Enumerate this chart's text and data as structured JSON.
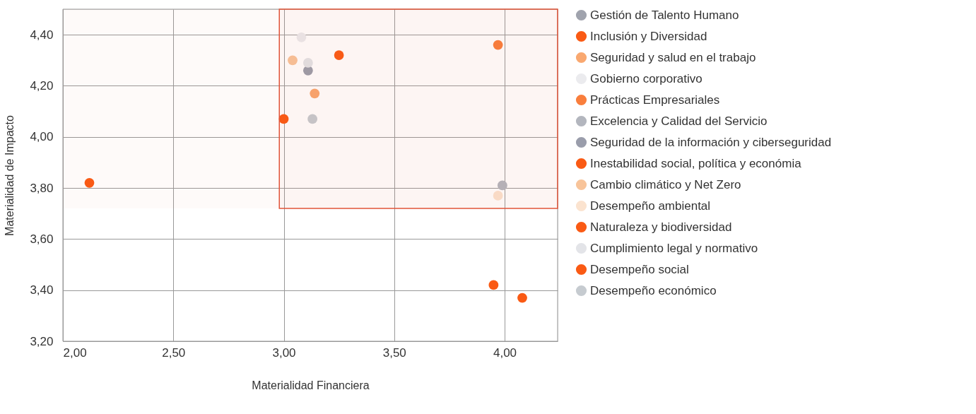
{
  "chart_data": {
    "type": "scatter",
    "xlabel": "Materialidad Financiera",
    "ylabel": "Materialidad de Impacto",
    "xlim": [
      2.0,
      4.24
    ],
    "ylim": [
      3.2,
      4.5
    ],
    "xticks": [
      {
        "value": 2.0,
        "label": "2,00"
      },
      {
        "value": 2.5,
        "label": "2,50"
      },
      {
        "value": 3.0,
        "label": "3,00"
      },
      {
        "value": 3.5,
        "label": "3,50"
      },
      {
        "value": 4.0,
        "label": "4,00"
      }
    ],
    "yticks": [
      {
        "value": 3.2,
        "label": "3,20"
      },
      {
        "value": 3.4,
        "label": "3,40"
      },
      {
        "value": 3.6,
        "label": "3,60"
      },
      {
        "value": 3.8,
        "label": "3,80"
      },
      {
        "value": 4.0,
        "label": "4,00"
      },
      {
        "value": 4.2,
        "label": "4,20"
      },
      {
        "value": 4.4,
        "label": "4,40"
      }
    ],
    "grid": true,
    "legend": "right",
    "marker": "circle",
    "bands": [
      {
        "axis": "x",
        "from": 2.98,
        "to": 4.24,
        "color": "#e2553a"
      },
      {
        "axis": "y",
        "from": 3.72,
        "to": 4.5,
        "color": "#e2553a"
      }
    ],
    "series": [
      {
        "name": "Gestión de Talento Humano",
        "color": "#a0a3ad",
        "x": [
          null
        ],
        "values": [
          null
        ]
      },
      {
        "name": "Inclusión y Diversidad",
        "color": "#fa5a14",
        "x": [
          3.0,
          3.25
        ],
        "values": [
          4.07,
          4.32
        ]
      },
      {
        "name": "Seguridad y salud en el trabajo",
        "color": "#f9a870",
        "x": [
          3.14
        ],
        "values": [
          4.17
        ]
      },
      {
        "name": "Gobierno corporativo",
        "color": "#ebebee",
        "x": [
          3.08
        ],
        "values": [
          4.39
        ]
      },
      {
        "name": "Prácticas Empresariales",
        "color": "#f97e3c",
        "x": [
          3.97
        ],
        "values": [
          4.36
        ]
      },
      {
        "name": "Excelencia y Calidad del Servicio",
        "color": "#b3b6be",
        "x": [
          3.99
        ],
        "values": [
          3.81
        ]
      },
      {
        "name": "Seguridad de la información y ciberseguridad",
        "color": "#9a9dab",
        "x": [
          3.11
        ],
        "values": [
          4.26
        ]
      },
      {
        "name": "Inestabilidad social, política y económia",
        "color": "#fa5a14",
        "x": [
          2.12
        ],
        "values": [
          3.82
        ]
      },
      {
        "name": "Cambio climático y Net Zero",
        "color": "#f8c49a",
        "x": [
          3.04
        ],
        "values": [
          4.3
        ]
      },
      {
        "name": "Desempeño ambiental",
        "color": "#fbe3cf",
        "x": [
          3.97
        ],
        "values": [
          3.77
        ]
      },
      {
        "name": "Naturaleza y biodiversidad",
        "color": "#fa5a14",
        "x": [
          3.95
        ],
        "values": [
          3.42
        ]
      },
      {
        "name": "Cumplimiento legal y normativo",
        "color": "#e3e4e8",
        "x": [
          3.11
        ],
        "values": [
          4.29
        ]
      },
      {
        "name": "Desempeño social",
        "color": "#fa5a14",
        "x": [
          4.08
        ],
        "values": [
          3.37
        ]
      },
      {
        "name": "Desempeño económico",
        "color": "#c6cbd0",
        "x": [
          3.13
        ],
        "values": [
          4.07
        ]
      }
    ]
  }
}
